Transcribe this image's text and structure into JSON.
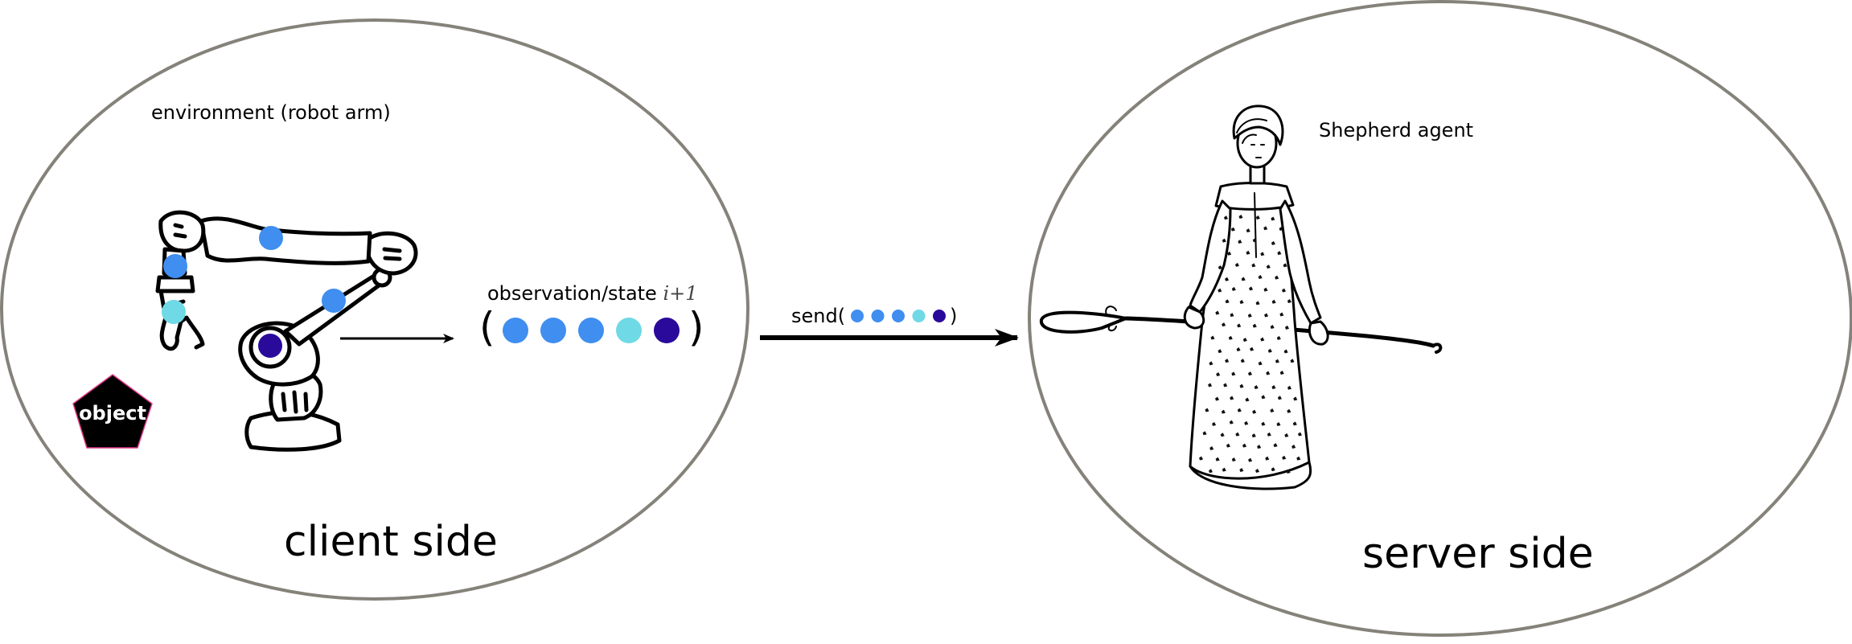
{
  "client": {
    "environment_label": "environment (robot arm)",
    "side_label": "client side",
    "object_label": "object"
  },
  "observation": {
    "label": "observation/state",
    "index": "i+1",
    "dots": [
      "#3f8ef0",
      "#3f8ef0",
      "#3f8ef0",
      "#6fd9e6",
      "#2a0a9a"
    ],
    "open_paren": "(",
    "close_paren": ")"
  },
  "send": {
    "label": "send(",
    "close": ")",
    "dots": [
      "#3f8ef0",
      "#3f8ef0",
      "#3f8ef0",
      "#6fd9e6",
      "#2a0a9a"
    ]
  },
  "server": {
    "agent_label": "Shepherd agent",
    "side_label": "server side"
  },
  "colors": {
    "ellipse_stroke": "#85827a",
    "joint_blue": "#3f8ef0",
    "joint_cyan": "#6fd9e6",
    "joint_dark": "#2a0a9a"
  }
}
